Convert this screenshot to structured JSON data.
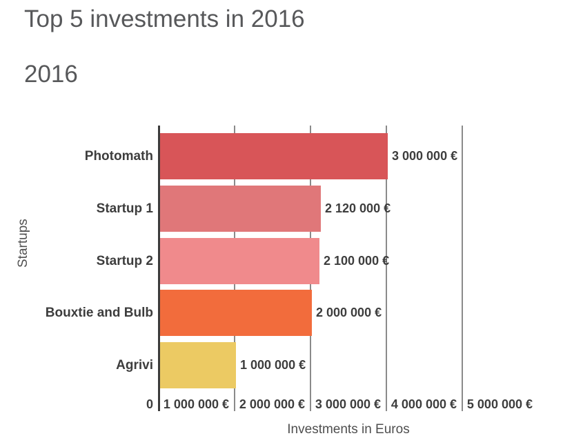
{
  "title": "Top 5 investments in 2016",
  "subtitle": "2016",
  "chart_data": {
    "type": "bar",
    "orientation": "horizontal",
    "title": "Top 5 investments in 2016",
    "subtitle": "2016",
    "xlabel": "Investments in Euros",
    "ylabel": "Startups",
    "categories": [
      "Photomath",
      "Startup 1",
      "Startup 2",
      "Bouxtie and Bulb",
      "Agrivi"
    ],
    "values": [
      3000000,
      2120000,
      2100000,
      2000000,
      1000000
    ],
    "value_labels": [
      "3 000 000 €",
      "2 120 000 €",
      "2 100 000 €",
      "2 000 000 €",
      "1 000 000 €"
    ],
    "bar_colors": [
      "#d85558",
      "#e07779",
      "#f08a8c",
      "#f26c3c",
      "#ecca63"
    ],
    "xlim": [
      0,
      5000000
    ],
    "x_ticks": [
      "0",
      "1 000 000 €",
      "2 000 000 €",
      "3 000 000 €",
      "4 000 000 €",
      "5 000 000 €"
    ],
    "x_tick_values": [
      0,
      1000000,
      2000000,
      3000000,
      4000000,
      5000000
    ],
    "grid": true,
    "legend": "none"
  },
  "colors": {
    "background": "#ffffff",
    "title_text": "#57585a",
    "label_text": "#3d3d3d",
    "axis_title_text": "#4f4f4f",
    "gridline": "#8a8a8a",
    "axis_line": "#3b3b3b"
  }
}
